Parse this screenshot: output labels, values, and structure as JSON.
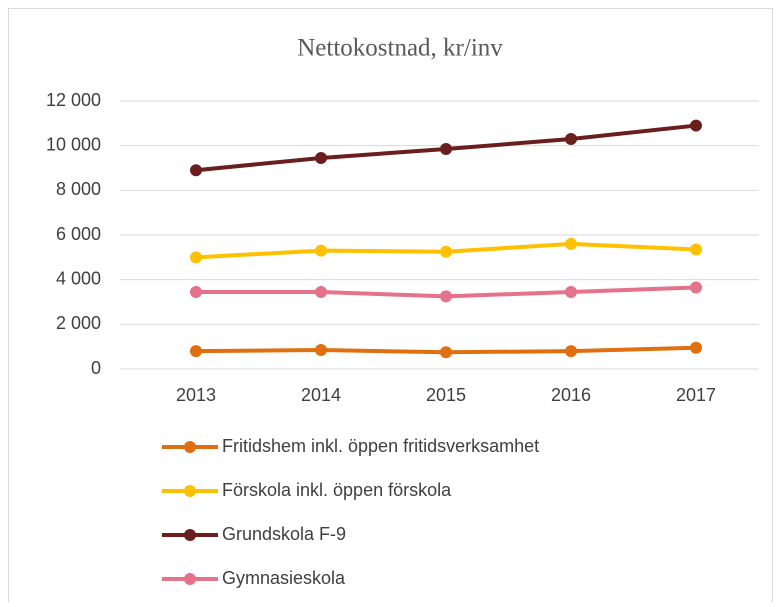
{
  "chart_data": {
    "type": "line",
    "title": "Nettokostnad, kr/inv",
    "categories": [
      "2013",
      "2014",
      "2015",
      "2016",
      "2017"
    ],
    "series": [
      {
        "name": "Fritidshem inkl. öppen fritidsverksamhet",
        "color": "#e0700f",
        "values": [
          800,
          850,
          750,
          800,
          950
        ]
      },
      {
        "name": "Förskola inkl. öppen förskola",
        "color": "#ffc000",
        "values": [
          5000,
          5300,
          5250,
          5600,
          5350
        ]
      },
      {
        "name": "Grundskola F-9",
        "color": "#6b1e1e",
        "values": [
          8900,
          9450,
          9850,
          10300,
          10900
        ]
      },
      {
        "name": "Gymnasieskola",
        "color": "#e3728a",
        "values": [
          3450,
          3450,
          3250,
          3450,
          3650
        ]
      }
    ],
    "ylim": [
      0,
      12000
    ],
    "yticks": [
      0,
      {
        "value": 2000,
        "label": "2 000"
      },
      {
        "value": 4000,
        "label": "4 000"
      },
      {
        "value": 6000,
        "label": "6 000"
      },
      {
        "value": 8000,
        "label": "8 000"
      },
      {
        "value": 10000,
        "label": "10 000"
      },
      {
        "value": 12000,
        "label": "12 000"
      }
    ],
    "grid": true,
    "legend": "bottom"
  }
}
